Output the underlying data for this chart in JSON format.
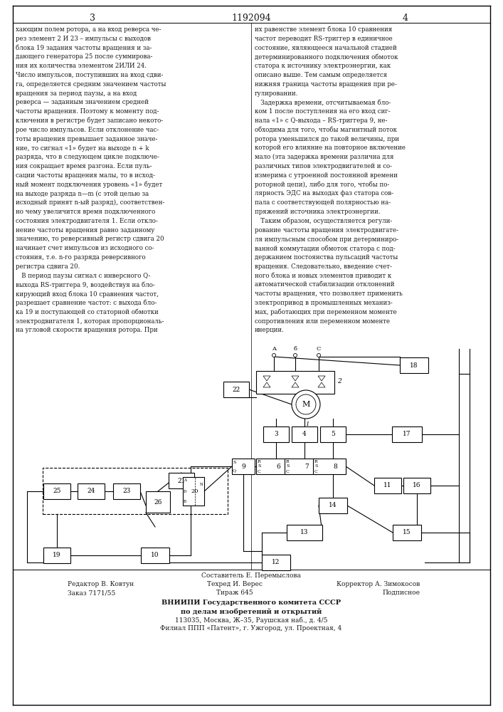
{
  "page_number": "1192094",
  "col_left_number": "3",
  "col_right_number": "4",
  "background": "#ffffff",
  "text_color": "#1a1a1a",
  "col_left_text": "хающим полем ротора, а на вход реверса че-\nрез элемент 2 И 23 – импульсы с выходов\nблока 19 задания частоты вращения и за-\nдающего генератора 25 после суммирова-\nния их количества элементом 2ИЛИ 24.\nЧисло импульсов, поступивших на вход сдви-\nга, определяется средним значением частоты\nвращения за период паузы, а на вход\nреверса — заданным значением средней\nчастоты вращения. Поэтому к моменту под-\nключения в регистре будет записано некото-\nрое число импульсов. Если отклонение час-\nтоты вращения превышает заданное значе-\nние, то сигнал «1» будет на выходе n + k\nразряда, что в следующем цикле подключе-\nния сокращает время разгона. Если пуль-\nсации частоты вращения малы, то в исход-\nный момент подключения уровень «1» будет\nна выходе разряда n—m (с этой целью за\nисходный принят n-ый разряд), соответствен-\nно чему увеличится время подключенного\nсостояния электродвигателя 1. Если откло-\nнение частоты вращения равно заданному\nзначению, то реверсивный регистр сдвига 20\nначинает счет импульсов из исходного со-\nстояния, т.е. n-го разряда реверсивного\nрегистра сдвига 20.\n   В период паузы сигнал с инверсного Q-\nвыхода RS-триггера 9, воздействуя на бло-\nкирующий вход блока 10 сравнения частот,\nразрешает сравнение частот: с выхода бло-\nка 19 и поступающей со статорной обмотки\nэлектродвигателя 1, которая пропорциональ-\nна угловой скорости вращения ротора. При",
  "col_right_text": "их равенстве элемент блока 10 сравнения\nчастот переводит RS-триггер в единичное\nсостояние, являющееся начальной стадией\nдетерминированного подключения обмоток\nстатора к источнику электроэнергии, как\nописано выше. Тем самым определяется\nнижняя граница частоты вращения при ре-\nгулировании.\n   Задержка времени, отсчитываемая бло-\nком 1 после поступления на его вход сиг-\nнала «1» с Q-выхода – RS-триггера 9, не-\nобходима для того, чтобы магнитный поток\nротора уменьшился до такой величины, при\nкоторой его влияние на повторное включение\nмало (эта задержка времени различна для\nразличных типов электродвигателей и со-\nизмерима с утроенной постоянной времени\nроторной цепи), либо для того, чтобы по-\nлярность ЭДС на выходах фаз статора сов-\nпала с соответствующей полярностью на-\nпряжений источника электроэнергии.\n   Таким образом, осуществляется регули-\nрование частоты вращения электродвигате-\nля импульсным способом при детерминиро-\nванной коммутации обмоток статора с под-\nдержанием постоянства пульсаций частоты\nвращения. Следовательно, введение счет-\nного блока и новых элементов приводит к\nавтоматической стабилизации отклонений\nчастоты вращения, что позволяет применить\nэлектропривод в промышленных механиз-\nмах, работающих при переменном моменте\nсопротивления или переменном моменте\nинерции.",
  "footer_line1": "Составитель Е. Перемыслова",
  "footer_line2_left": "Редактор В. Ковтун",
  "footer_line2_mid": "Техред И. Верес",
  "footer_line2_right": "Корректор А. Зимокосов",
  "footer_line3_left": "Заказ 7171/55",
  "footer_line3_mid": "Тираж 645",
  "footer_line3_right": "Подписное",
  "footer_org": "ВНИИПИ Государственного комитета СССР",
  "footer_org2": "по делам изобретений и открытий",
  "footer_addr1": "113035, Москва, Ж–35, Раушская наб., д. 4/5",
  "footer_addr2": "Филиал ППП «Патент», г. Ужгород, ул. Проектная, 4"
}
